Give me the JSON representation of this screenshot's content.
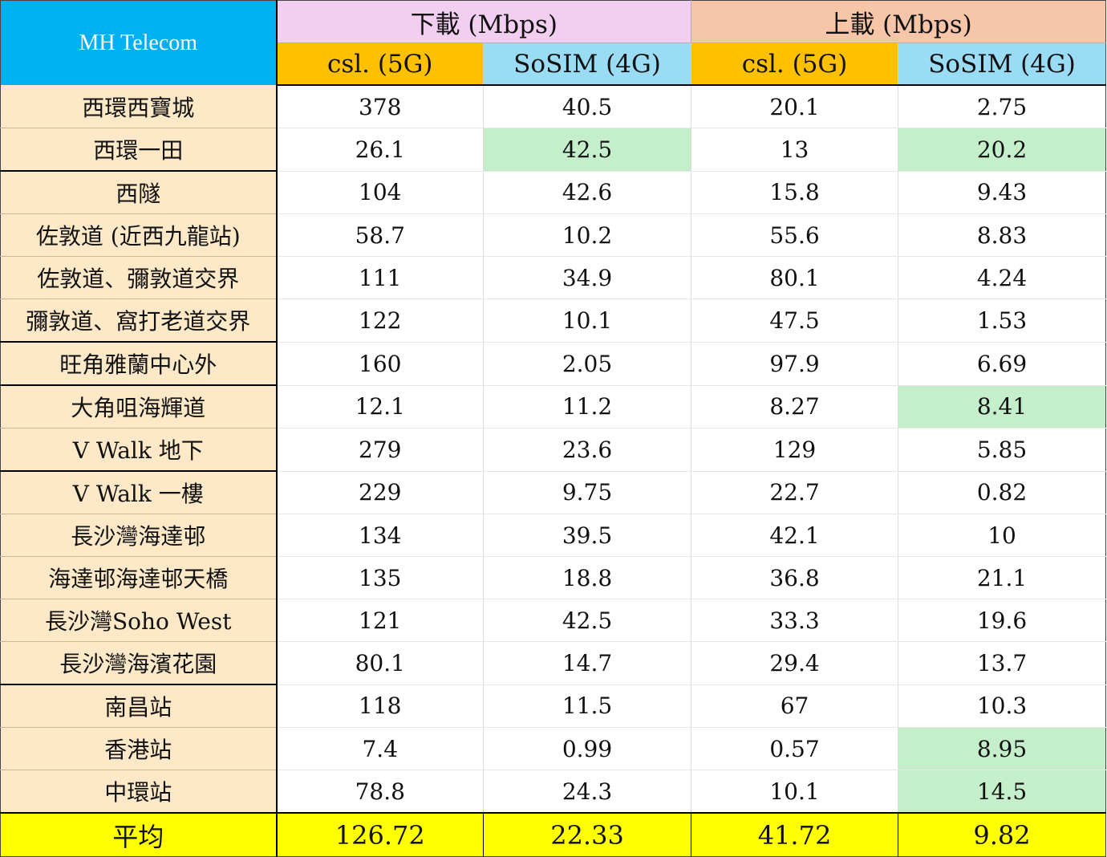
{
  "chart_data": {
    "type": "table",
    "title": "MH Telecom",
    "groups": [
      {
        "label": "下載 (Mbps)",
        "color": "#f2cef0"
      },
      {
        "label": "上載 (Mbps)",
        "color": "#f7c5a8"
      }
    ],
    "carriers": [
      {
        "label": "csl. (5G)",
        "color": "#ffc000"
      },
      {
        "label": "SoSIM (4G)",
        "color": "#9bdcf5"
      },
      {
        "label": "csl. (5G)",
        "color": "#ffc000"
      },
      {
        "label": "SoSIM (4G)",
        "color": "#9bdcf5"
      }
    ],
    "rows": [
      {
        "location": "西環西寶城",
        "values": [
          "378",
          "40.5",
          "20.1",
          "2.75"
        ],
        "highlight": []
      },
      {
        "location": "西環一田",
        "values": [
          "26.1",
          "42.5",
          "13",
          "20.2"
        ],
        "highlight": [
          1,
          3
        ]
      },
      {
        "location": "西隧",
        "values": [
          "104",
          "42.6",
          "15.8",
          "9.43"
        ],
        "highlight": []
      },
      {
        "location": "佐敦道 (近西九龍站)",
        "values": [
          "58.7",
          "10.2",
          "55.6",
          "8.83"
        ],
        "highlight": []
      },
      {
        "location": "佐敦道、彌敦道交界",
        "values": [
          "111",
          "34.9",
          "80.1",
          "4.24"
        ],
        "highlight": []
      },
      {
        "location": "彌敦道、窩打老道交界",
        "values": [
          "122",
          "10.1",
          "47.5",
          "1.53"
        ],
        "highlight": []
      },
      {
        "location": "旺角雅蘭中心外",
        "values": [
          "160",
          "2.05",
          "97.9",
          "6.69"
        ],
        "highlight": []
      },
      {
        "location": "大角咀海輝道",
        "values": [
          "12.1",
          "11.2",
          "8.27",
          "8.41"
        ],
        "highlight": [
          3
        ]
      },
      {
        "location": "V Walk 地下",
        "values": [
          "279",
          "23.6",
          "129",
          "5.85"
        ],
        "highlight": []
      },
      {
        "location": "V Walk 一樓",
        "values": [
          "229",
          "9.75",
          "22.7",
          "0.82"
        ],
        "highlight": []
      },
      {
        "location": "長沙灣海達邨",
        "values": [
          "134",
          "39.5",
          "42.1",
          "10"
        ],
        "highlight": []
      },
      {
        "location": "海達邨海達邨天橋",
        "values": [
          "135",
          "18.8",
          "36.8",
          "21.1"
        ],
        "highlight": []
      },
      {
        "location": "長沙灣Soho West",
        "values": [
          "121",
          "42.5",
          "33.3",
          "19.6"
        ],
        "highlight": []
      },
      {
        "location": "長沙灣海濱花園",
        "values": [
          "80.1",
          "14.7",
          "29.4",
          "13.7"
        ],
        "highlight": []
      },
      {
        "location": "南昌站",
        "values": [
          "118",
          "11.5",
          "67",
          "10.3"
        ],
        "highlight": []
      },
      {
        "location": "香港站",
        "values": [
          "7.4",
          "0.99",
          "0.57",
          "8.95"
        ],
        "highlight": [
          3
        ]
      },
      {
        "location": "中環站",
        "values": [
          "78.8",
          "24.3",
          "10.1",
          "14.5"
        ],
        "highlight": [
          3
        ]
      }
    ],
    "average": {
      "label": "平均",
      "values": [
        "126.72",
        "22.33",
        "41.72",
        "9.82"
      ]
    },
    "colors": {
      "header_brand": "#00b0f0",
      "location_bg": "#fde9c8",
      "highlight": "#c4efca",
      "average_bg": "#ffff00"
    }
  }
}
